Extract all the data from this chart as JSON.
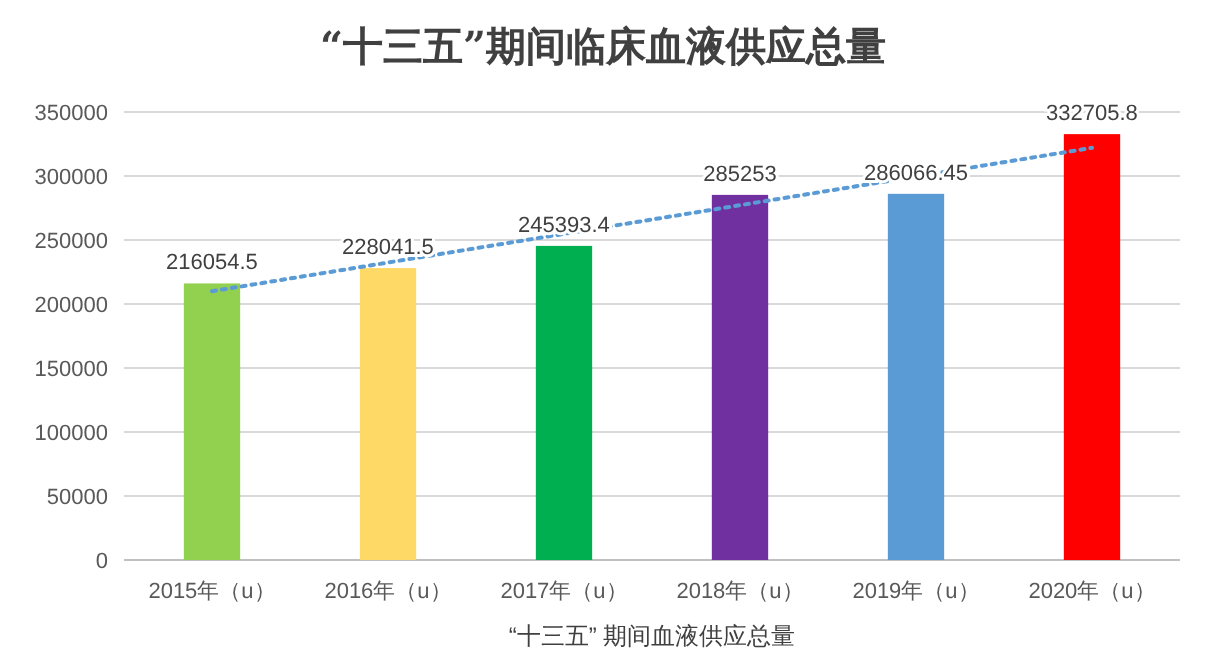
{
  "chart_data": {
    "type": "bar",
    "title": "“十三五”期间临床血液供应总量",
    "xlabel": "“十三五” 期间血液供应总量",
    "categories": [
      "2015年（u）",
      "2016年（u）",
      "2017年（u）",
      "2018年（u）",
      "2019年（u）",
      "2020年（u）"
    ],
    "series": [
      {
        "colors": [
          "#92d050",
          "#ffd966",
          "#00b050",
          "#7030a0",
          "#5b9bd5",
          "#ff0000"
        ],
        "values": [
          216054.5,
          228041.5,
          245393.4,
          285253,
          286066.45,
          332705.8
        ],
        "value_labels": [
          "216054.5",
          "228041.5",
          "245393.4",
          "285253",
          "286066.45",
          "332705.8"
        ]
      },
      {
        "type": "line",
        "x": [
          "2015年（u）",
          "2020年（u）"
        ],
        "values": [
          210000,
          322000
        ],
        "color": "#5b9bd5",
        "line_style": "dotted"
      }
    ],
    "ylim": [
      0,
      350000
    ],
    "yticks": [
      0,
      50000,
      100000,
      150000,
      200000,
      250000,
      300000,
      350000
    ],
    "grid": "y"
  }
}
